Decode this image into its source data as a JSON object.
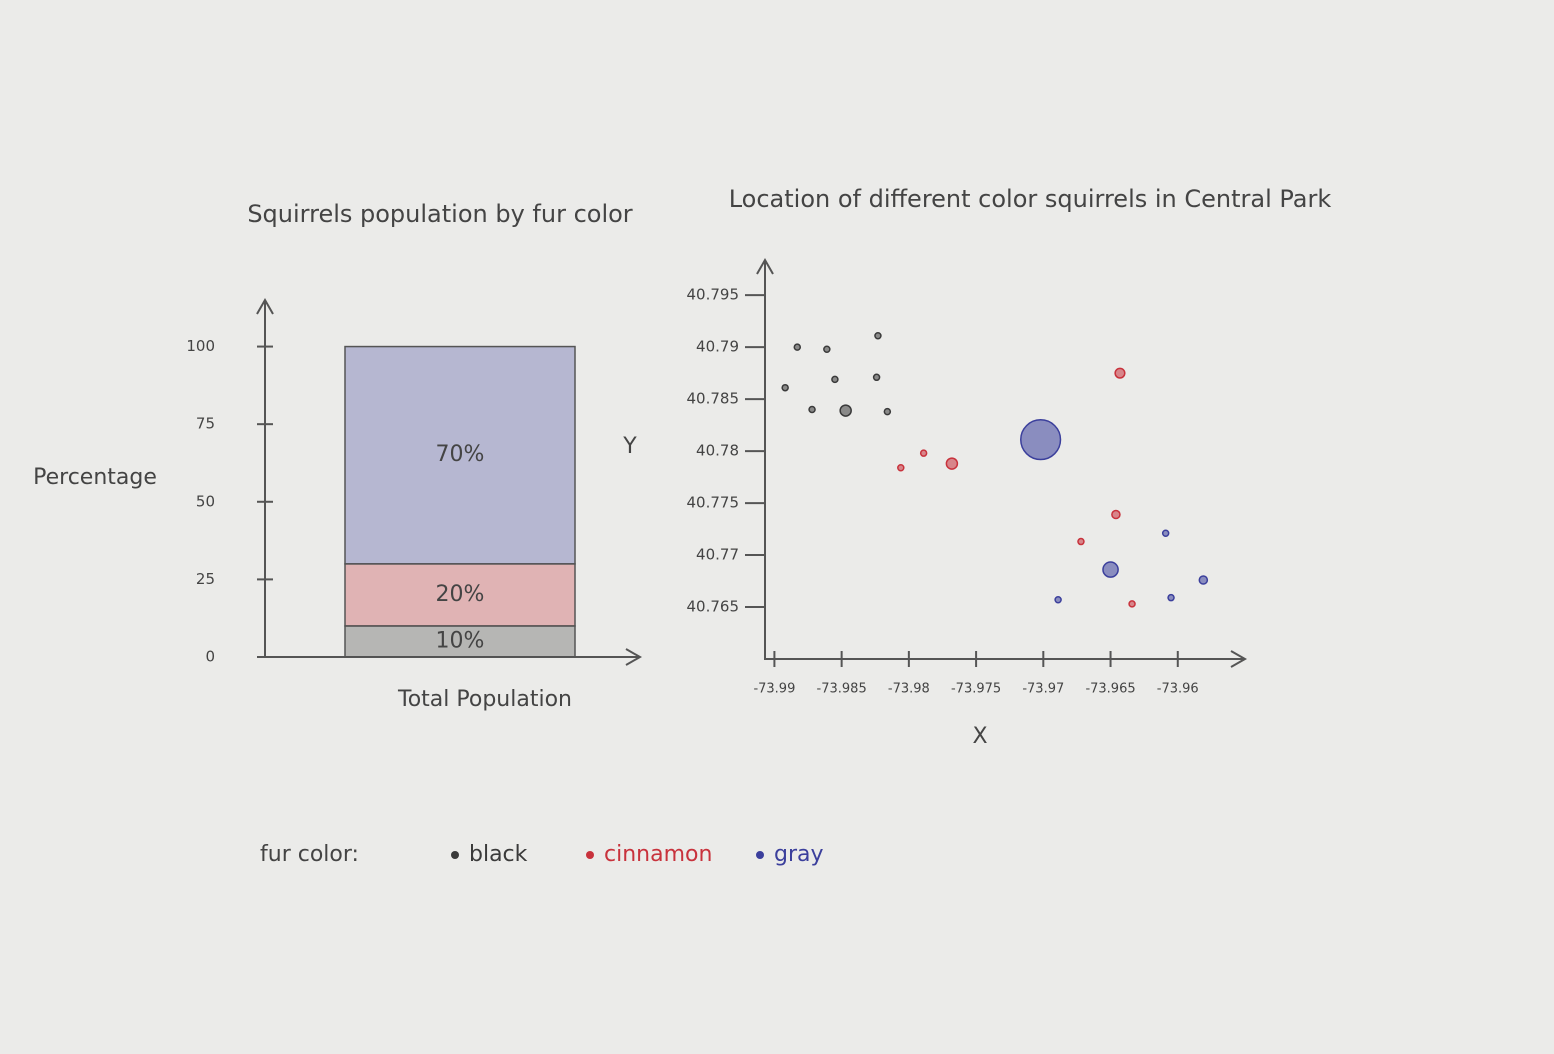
{
  "chart_data": [
    {
      "type": "stacked-bar",
      "title": "Squirrels population by fur color",
      "ylabel": "Percentage",
      "xlabel": "Total Population",
      "categories": [
        null
      ],
      "series": [
        {
          "name": "black",
          "color": "#3a3a3a",
          "values": [
            10
          ],
          "value_labels": [
            "10%"
          ]
        },
        {
          "name": "cinnamon",
          "color": "#c8323c",
          "values": [
            20
          ],
          "value_labels": [
            "20%"
          ]
        },
        {
          "name": "gray",
          "color": "#3b3f9c",
          "values": [
            70
          ],
          "value_labels": [
            "70%"
          ]
        }
      ],
      "ylim": [
        0,
        115
      ],
      "yticks": [
        0,
        25,
        50,
        75,
        100
      ],
      "legend_title": "fur color:"
    },
    {
      "type": "scatter",
      "title": "Location of different color squirrels in Central Park",
      "xlabel": "X",
      "ylabel": "Y",
      "xlim": [
        -73.9907,
        -73.955
      ],
      "ylim": [
        40.76,
        40.798
      ],
      "xticks": [
        -73.99,
        -73.985,
        -73.98,
        -73.975,
        -73.97,
        -73.965,
        -73.96
      ],
      "yticks": [
        40.765,
        40.77,
        40.775,
        40.78,
        40.785,
        40.79,
        40.795
      ],
      "series": [
        {
          "color": "#3a3a3a",
          "x": [
            -73.9883,
            -73.9861,
            -73.9823,
            -73.9892,
            -73.9855,
            -73.9824,
            -73.9872,
            -73.9847,
            -73.9816
          ],
          "values": [
            40.79,
            40.7898,
            40.7911,
            40.7861,
            40.7869,
            40.7871,
            40.784,
            40.7839,
            40.7838
          ],
          "sizes": [
            1,
            1,
            1,
            1,
            1,
            1,
            1,
            4,
            1
          ]
        },
        {
          "color": "#c8323c",
          "x": [
            -73.9643,
            -73.9768,
            -73.9806,
            -73.9789,
            -73.9646,
            -73.9672,
            -73.9634
          ],
          "values": [
            40.7875,
            40.7788,
            40.7784,
            40.7798,
            40.7739,
            40.7713,
            40.7653
          ],
          "sizes": [
            3,
            4,
            1,
            1,
            2,
            1,
            1
          ]
        },
        {
          "color": "#3b3f9c",
          "x": [
            -73.9702,
            -73.965,
            -73.9609,
            -73.9581,
            -73.9605,
            -73.9689
          ],
          "values": [
            40.7811,
            40.7686,
            40.7721,
            40.7676,
            40.7659,
            40.7657
          ],
          "sizes": [
            60,
            8,
            1,
            2,
            1,
            1
          ]
        }
      ]
    }
  ]
}
